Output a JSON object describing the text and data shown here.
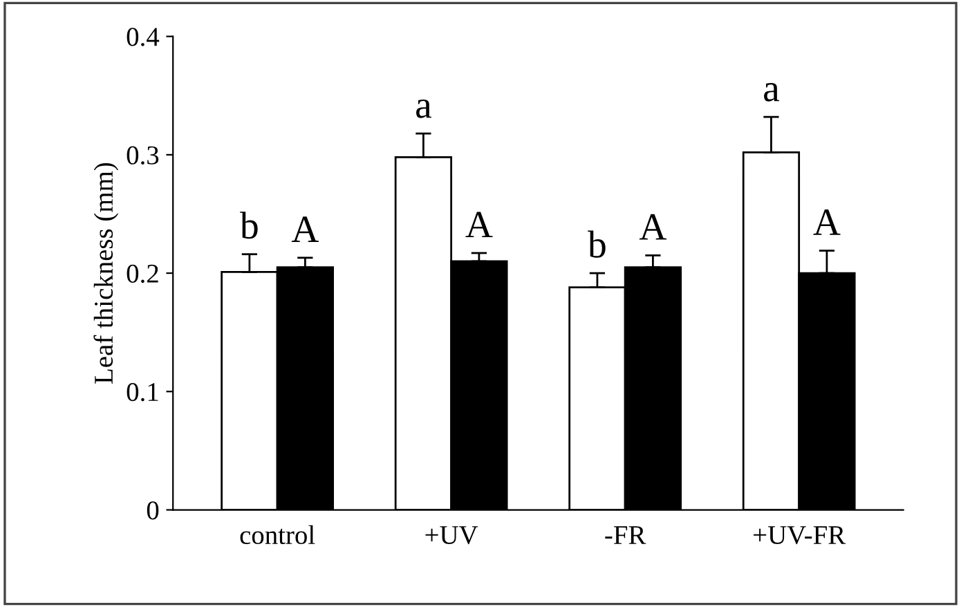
{
  "chart_data": {
    "type": "bar",
    "ylabel": "Leaf thickness (mm)",
    "categories": [
      "control",
      "+UV",
      "-FR",
      "+UV-FR"
    ],
    "series": [
      {
        "color": "#ffffff",
        "values": [
          0.201,
          0.298,
          0.188,
          0.302
        ],
        "errors": [
          0.015,
          0.02,
          0.012,
          0.03
        ]
      },
      {
        "color": "#000000",
        "values": [
          0.205,
          0.21,
          0.205,
          0.2
        ],
        "errors": [
          0.008,
          0.007,
          0.01,
          0.019
        ]
      }
    ],
    "ylim": [
      0,
      0.4
    ],
    "yticks": [
      {
        "value": 0,
        "label": "0"
      },
      0.1,
      0.2,
      0.3,
      0.4
    ],
    "grid": false,
    "legend": false,
    "annotations": [
      "b",
      "A",
      "a",
      "A",
      "b",
      "A",
      "a",
      "A"
    ]
  }
}
